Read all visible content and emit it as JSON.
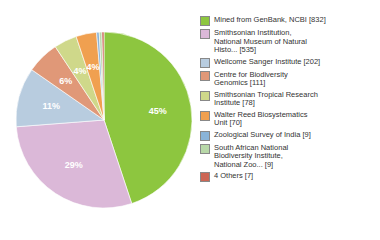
{
  "chart_data": {
    "type": "pie",
    "categories": [
      "Mined from GenBank, NCBI [832]",
      "Smithsonian Institution,\nNational Museum of Natural\nHisto... [535]",
      "Wellcome Sanger Institute [202]",
      "Centre for Biodiversity\nGenomics [111]",
      "Smithsonian Tropical Research\nInstitute [78]",
      "Walter Reed Biosystematics\nUnit [70]",
      "Zoological Survey of India [9]",
      "South African National\nBiodiversity Institute,\nNational Zoo... [9]",
      "4 Others [7]"
    ],
    "values": [
      832,
      535,
      202,
      111,
      78,
      70,
      9,
      9,
      7
    ],
    "value_labels": [
      "45%",
      "29%",
      "11%",
      "6%",
      "4%",
      "4%",
      null,
      null,
      null
    ],
    "data_labels": true,
    "colors": [
      "#8dc63f",
      "#dbb8d8",
      "#b8ccdf",
      "#e09878",
      "#cfd88a",
      "#f0a050",
      "#8ab4d8",
      "#b8d8a8",
      "#cc6655"
    ],
    "legend": "right"
  }
}
